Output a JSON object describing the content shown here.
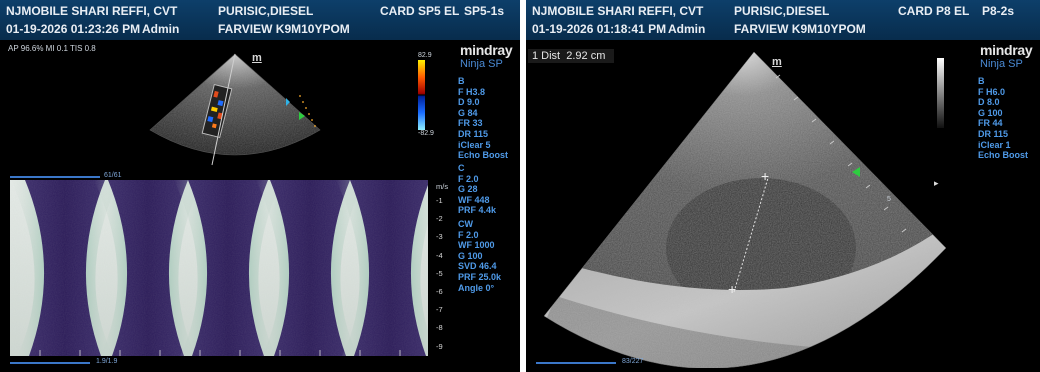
{
  "left": {
    "header": {
      "institution": "NJMOBILE SHARI REFFI, CVT",
      "patient": "PURISIC,DIESEL",
      "exam": "CARD SP5 EL",
      "probe": "SP5-1s",
      "datetime": "01-19-2026 01:23:26 PM",
      "operator": "Admin",
      "patient_id": "FARVIEW K9M10YPOM"
    },
    "acoustic_info": "AP 96.6% MI 0.1 TIS 0.8",
    "brand": "mindray",
    "product": "Ninja SP",
    "color_scale": {
      "top": "82.9",
      "bottom": "-82.9"
    },
    "b_mode": [
      "B",
      "F H3.8",
      "D 9.0",
      "G 84",
      "FR 33",
      "DR 115",
      "iClear 5",
      "Echo Boost"
    ],
    "c_mode": [
      "C",
      "F 2.0",
      "G 28",
      "WF 448",
      "PRF 4.4k"
    ],
    "cw_mode": [
      "CW",
      "F 2.0",
      "WF 1000",
      "G 100",
      "SVD 46.4",
      "PRF 25.0k",
      "Angle 0°"
    ],
    "doppler_unit": "m/s",
    "doppler_ticks": [
      "-1",
      "-2",
      "-3",
      "-4",
      "-5",
      "-6",
      "-7",
      "-8",
      "-9"
    ],
    "cine_top": "61/61",
    "cine_bottom": "1.9/1.9",
    "marker": "m"
  },
  "right": {
    "header": {
      "institution": "NJMOBILE SHARI REFFI, CVT",
      "patient": "PURISIC,DIESEL",
      "exam": "CARD P8 EL",
      "probe": "P8-2s",
      "datetime": "01-19-2026 01:18:41 PM",
      "operator": "Admin",
      "patient_id": "FARVIEW K9M10YPOM"
    },
    "measurement": "1 Dist  2.92 cm",
    "brand": "mindray",
    "product": "Ninja SP",
    "b_mode": [
      "B",
      "F H6.0",
      "D 8.0",
      "G 100",
      "FR 44",
      "DR 115",
      "iClear 1",
      "Echo Boost"
    ],
    "cine": "83/227",
    "marker": "m",
    "caliper_top": "+",
    "caliper_bottom": "+",
    "depth_label": "5"
  },
  "colors": {
    "header_bg": "#0d3f6a",
    "param_blue": "#4f9ae8",
    "orientation_green": "#2ecc40",
    "focus_cyan": "#2fb3e8"
  }
}
